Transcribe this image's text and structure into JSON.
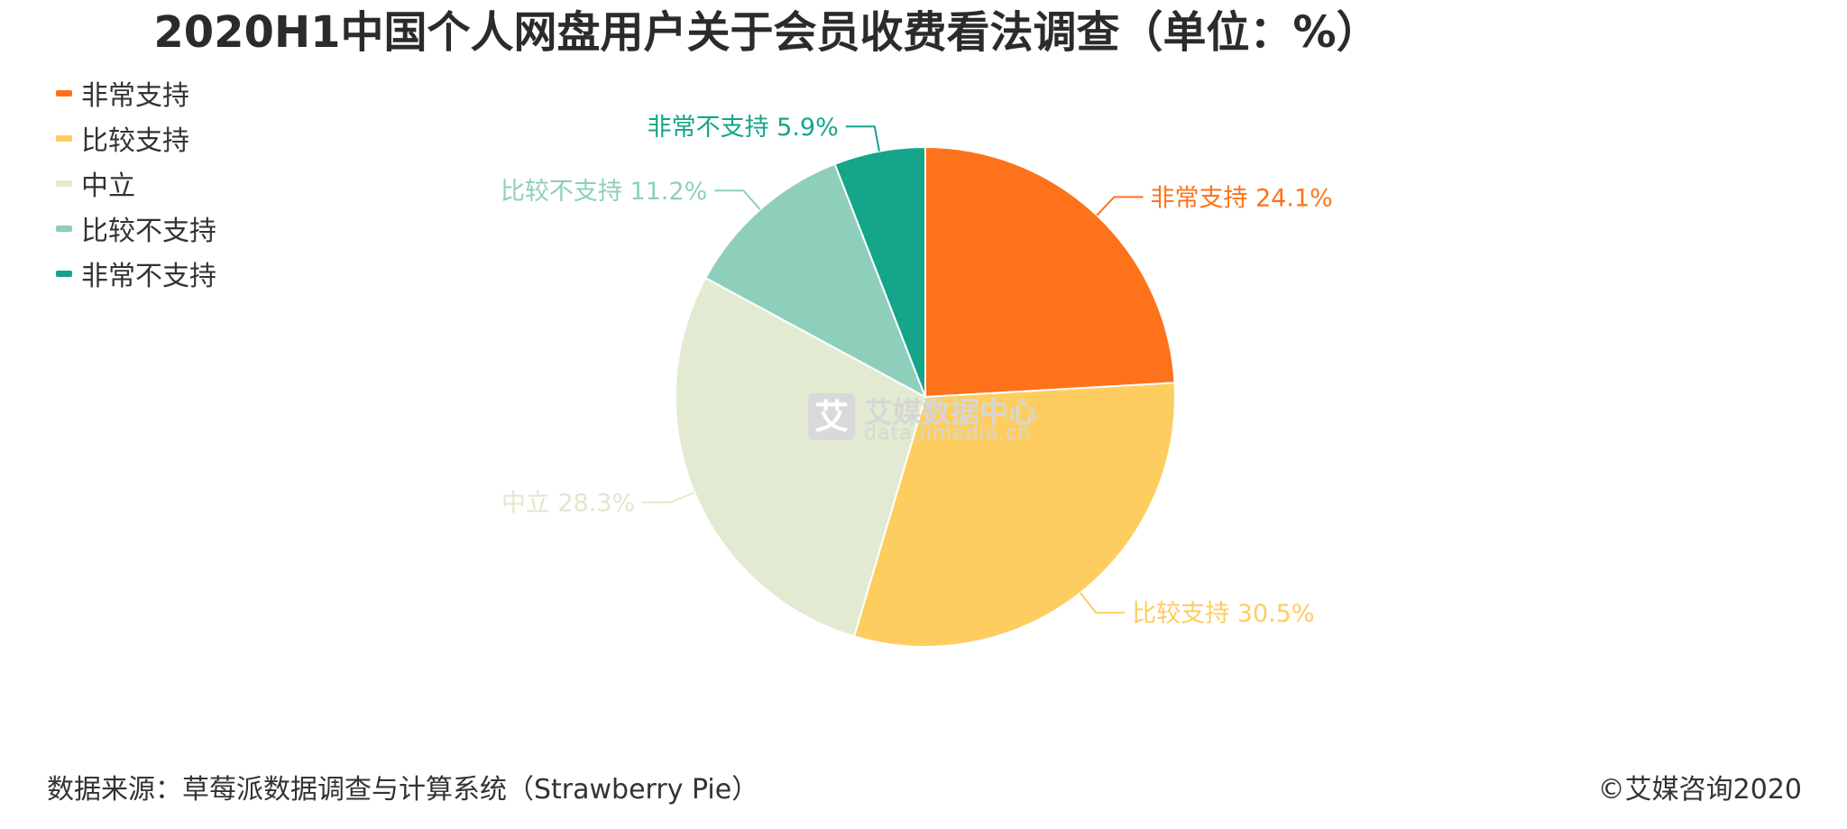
{
  "chart_data": {
    "type": "pie",
    "title": "2020H1中国个人网盘用户关于会员收费看法调查（单位：%）",
    "categories": [
      "非常支持",
      "比较支持",
      "中立",
      "比较不支持",
      "非常不支持"
    ],
    "values": [
      24.1,
      30.5,
      28.3,
      11.2,
      5.9
    ],
    "colors": [
      "#fe721b",
      "#fecd60",
      "#e2ebd1",
      "#8ecfbb",
      "#14a58a"
    ],
    "data_labels": [
      "非常支持 24.1%",
      "比较支持 30.5%",
      "中立 28.3%",
      "比较不支持 11.2%",
      "非常不支持 5.9%"
    ],
    "unit": "%",
    "legend": "top-left"
  },
  "watermark": {
    "name": "艾媒数据中心",
    "url": "data.iimedia.cn",
    "logo_char": "艾"
  },
  "footer": {
    "source": "数据来源：草莓派数据调查与计算系统（Strawberry Pie）",
    "copyright": "©艾媒咨询2020"
  }
}
